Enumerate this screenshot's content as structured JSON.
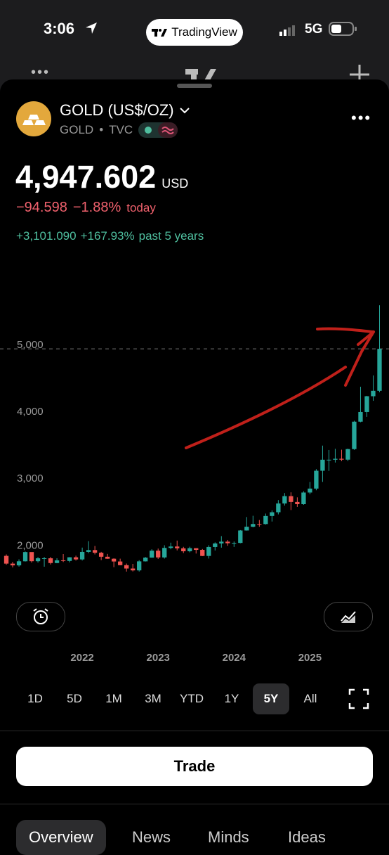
{
  "status_bar": {
    "time": "3:06",
    "app": "TradingView",
    "network": "5G"
  },
  "header": {
    "symbol": "GOLD (US$/OZ)",
    "ticker": "GOLD",
    "exchange": "TVC"
  },
  "quote": {
    "price": "4,947.602",
    "currency": "USD",
    "change": "−94.598",
    "change_pct": "−1.88%",
    "change_period": "today",
    "long_change": "+3,101.090",
    "long_change_pct": "+167.93%",
    "long_period": "past 5 years"
  },
  "chart_data": {
    "type": "candlestick",
    "categories": [
      null,
      null,
      null,
      null,
      null,
      null,
      null,
      null,
      null,
      null,
      null,
      null,
      null,
      null,
      null,
      null,
      null,
      null,
      null,
      null,
      null,
      null,
      null,
      null,
      null,
      null,
      null,
      null,
      null,
      null,
      null,
      null,
      null,
      null,
      null,
      null,
      null,
      null,
      null,
      null,
      null,
      null,
      null,
      null,
      null,
      null,
      null,
      null,
      null,
      null,
      null,
      null,
      null,
      null,
      null,
      null,
      null,
      null,
      null,
      null
    ],
    "open": [
      1850,
      1734,
      1708,
      1769,
      1907,
      1770,
      1814,
      1814,
      1743,
      1783,
      1774,
      1829,
      1797,
      1909,
      1937,
      1897,
      1837,
      1807,
      1766,
      1711,
      1661,
      1633,
      1768,
      1824,
      1928,
      1827,
      1969,
      1990,
      1963,
      1919,
      1965,
      1940,
      1849,
      1983,
      2036,
      2063,
      2039,
      2044,
      2230,
      2286,
      2327,
      2326,
      2447,
      2503,
      2634,
      2744,
      2657,
      2624,
      2798,
      2857,
      3124,
      3289,
      3289,
      3303,
      3290,
      3448,
      3858,
      4003,
      4239,
      4320
    ],
    "high": [
      1872,
      1760,
      1798,
      1916,
      1903,
      1832,
      1834,
      1834,
      1814,
      1877,
      1831,
      1853,
      1974,
      2070,
      1998,
      1910,
      1879,
      1814,
      1808,
      1735,
      1730,
      1786,
      1833,
      1949,
      1959,
      2009,
      2048,
      2079,
      1985,
      1987,
      1949,
      1953,
      2009,
      2052,
      2146,
      2088,
      2065,
      2236,
      2431,
      2450,
      2387,
      2483,
      2531,
      2685,
      2790,
      2801,
      2726,
      2817,
      2956,
      3148,
      3500,
      3435,
      3452,
      3439,
      3454,
      3872,
      4381,
      4245,
      4550,
      5600
    ],
    "low": [
      1717,
      1677,
      1690,
      1765,
      1750,
      1750,
      1688,
      1721,
      1740,
      1758,
      1753,
      1780,
      1781,
      1890,
      1872,
      1787,
      1805,
      1681,
      1709,
      1615,
      1617,
      1616,
      1765,
      1823,
      1804,
      1809,
      1949,
      1932,
      1893,
      1903,
      1885,
      1846,
      1810,
      1931,
      1973,
      2001,
      1984,
      2039,
      2228,
      2277,
      2286,
      2318,
      2364,
      2471,
      2603,
      2536,
      2583,
      2614,
      2772,
      2832,
      2957,
      3121,
      3247,
      3268,
      3268,
      3436,
      3850,
      3930,
      4170,
      4300
    ],
    "close": [
      1734,
      1708,
      1769,
      1907,
      1770,
      1814,
      1814,
      1743,
      1783,
      1774,
      1829,
      1797,
      1909,
      1937,
      1897,
      1837,
      1807,
      1766,
      1711,
      1661,
      1633,
      1768,
      1824,
      1928,
      1827,
      1969,
      1990,
      1963,
      1919,
      1965,
      1940,
      1849,
      1983,
      2036,
      2063,
      2039,
      2044,
      2230,
      2286,
      2327,
      2326,
      2447,
      2503,
      2634,
      2744,
      2657,
      2624,
      2798,
      2857,
      3124,
      3289,
      3289,
      3303,
      3290,
      3448,
      3858,
      4003,
      4239,
      4320,
      4948
    ],
    "up_color": "#26a69a",
    "down_color": "#ef5350",
    "xlim": [
      -1,
      60.5
    ],
    "xticks": [
      {
        "value": 12,
        "label": "2022"
      },
      {
        "value": 24,
        "label": "2023"
      },
      {
        "value": 36,
        "label": "2024"
      },
      {
        "value": 48,
        "label": "2025"
      }
    ],
    "ylim": [
      1330,
      6170
    ],
    "yticks": [
      {
        "value": 2000,
        "label": "2,000"
      },
      {
        "value": 3000,
        "label": "3,000"
      },
      {
        "value": 4000,
        "label": "4,000"
      },
      {
        "value": 5000,
        "label": "5,000"
      }
    ],
    "grid": false
  },
  "ranges": [
    {
      "label": "1D"
    },
    {
      "label": "5D"
    },
    {
      "label": "1M"
    },
    {
      "label": "3M"
    },
    {
      "label": "YTD"
    },
    {
      "label": "1Y"
    },
    {
      "label": "5Y",
      "selected": true
    },
    {
      "label": "All"
    }
  ],
  "trade_button": "Trade",
  "tabs": [
    "Overview",
    "News",
    "Minds",
    "Ideas"
  ]
}
